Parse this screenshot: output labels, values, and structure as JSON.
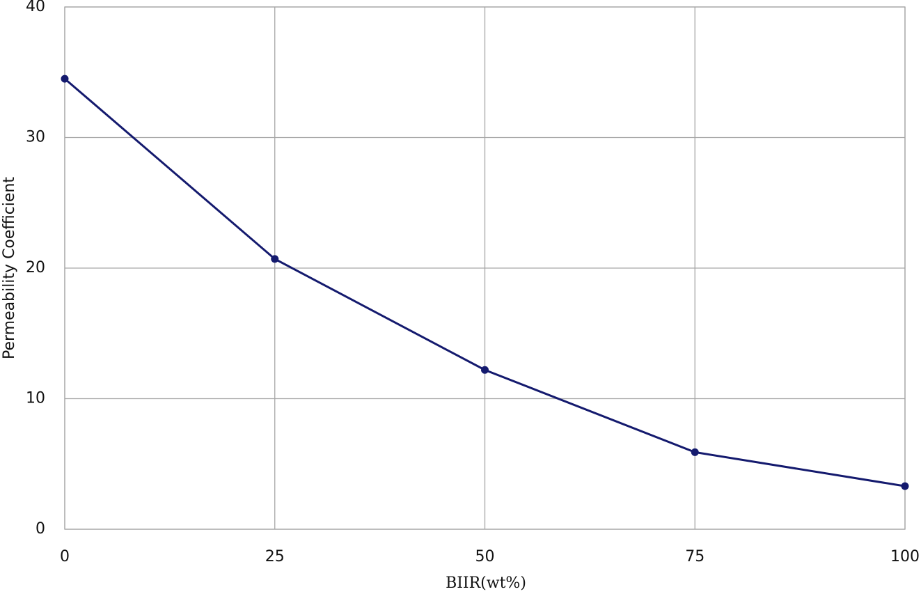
{
  "chart_data": {
    "type": "line",
    "x_label": "BIIR(wt%)",
    "y_label": "Permeability Coefficient",
    "x": [
      0,
      25,
      50,
      75,
      100
    ],
    "series": [
      {
        "name": "Permeability Coefficient",
        "color": "#141a6e",
        "values": [
          34.5,
          20.7,
          12.2,
          5.9,
          3.3
        ]
      }
    ],
    "xlim": [
      0,
      100
    ],
    "xticks": [
      0,
      25,
      50,
      75,
      100
    ],
    "ylim": [
      0,
      40
    ],
    "yticks": [
      0,
      10,
      20,
      30,
      40
    ],
    "grid": true,
    "markers": true
  }
}
